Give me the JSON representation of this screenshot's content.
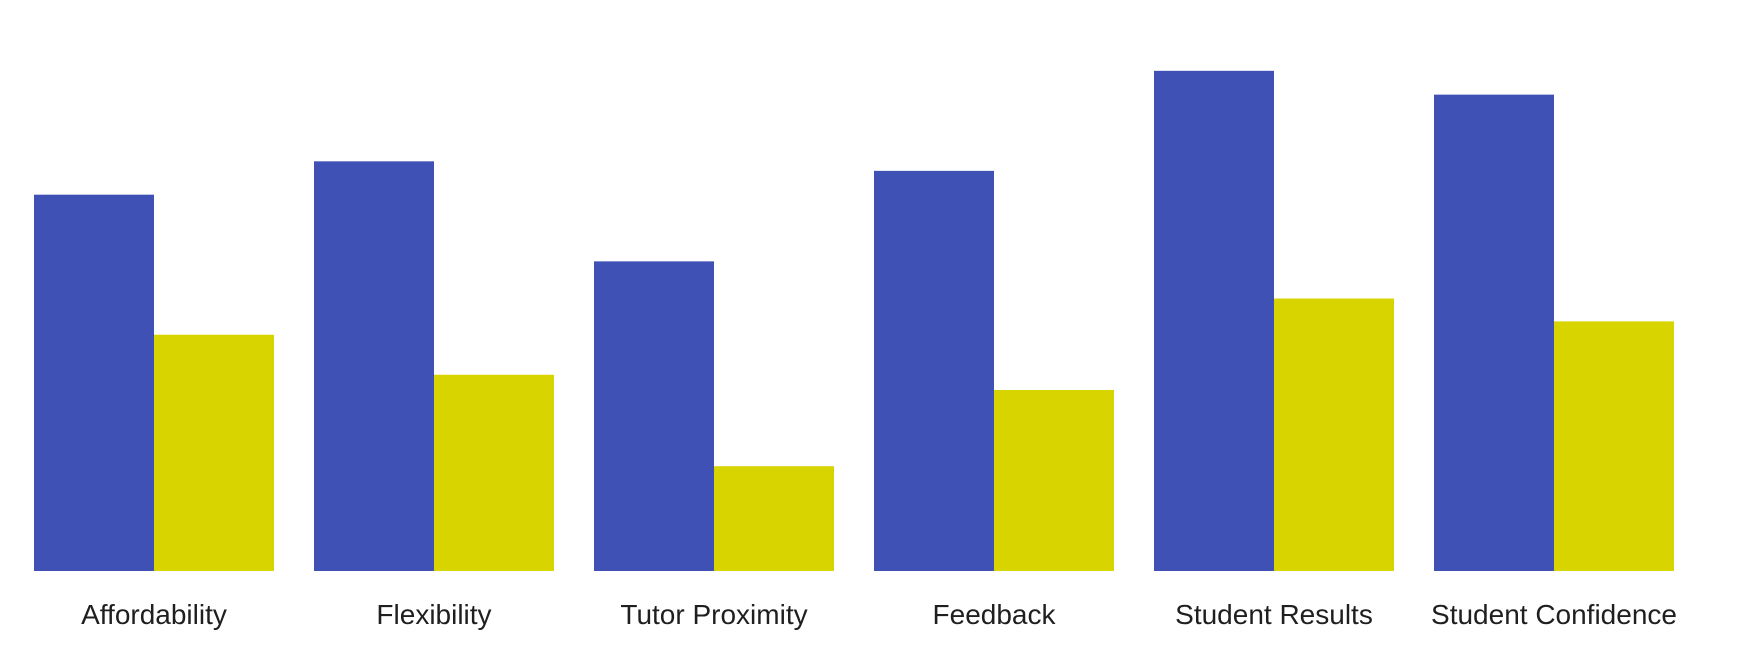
{
  "chart_data": {
    "type": "bar",
    "title": "",
    "xlabel": "",
    "ylabel": "",
    "categories": [
      "Affordability",
      "Flexibility",
      "Tutor Proximity",
      "Feedback",
      "Student Results",
      "Student Confidence"
    ],
    "series": [
      {
        "color": "#3f51b5",
        "values": [
          3.95,
          4.3,
          3.25,
          4.2,
          5.25,
          5.0
        ]
      },
      {
        "color": "#d8d400",
        "values": [
          2.48,
          2.06,
          1.1,
          1.9,
          2.86,
          2.62
        ]
      }
    ],
    "ylim": [
      0,
      5.5
    ],
    "grid": false,
    "legend": "none"
  }
}
